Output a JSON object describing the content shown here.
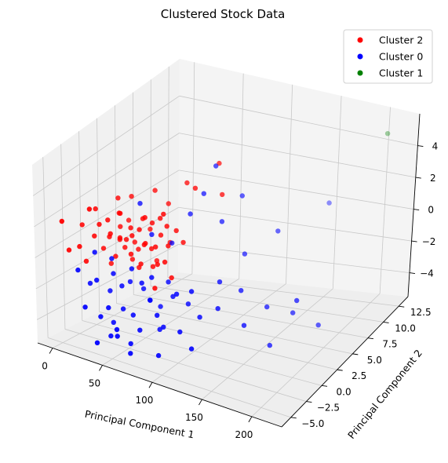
{
  "chart_data": {
    "type": "scatter",
    "title": "Clustered Stock Data",
    "xlabel": "Principal Component 1",
    "ylabel": "Principal Component 2",
    "zlabel": "",
    "xlim": [
      -15,
      230
    ],
    "ylim": [
      -6.5,
      14
    ],
    "zlim": [
      -5.5,
      6
    ],
    "xticks": [
      0,
      50,
      100,
      150,
      200
    ],
    "xtick_labels": [
      "0",
      "50",
      "100",
      "150",
      "200"
    ],
    "yticks": [
      -5.0,
      -2.5,
      0.0,
      2.5,
      5.0,
      7.5,
      10.0,
      12.5
    ],
    "ytick_labels": [
      "−5.0",
      "−2.5",
      "0.0",
      "2.5",
      "5.0",
      "7.5",
      "10.0",
      "12.5"
    ],
    "zticks": [
      -4,
      -2,
      0,
      2,
      4
    ],
    "ztick_labels": [
      "−4",
      "−2",
      "0",
      "2",
      "4"
    ],
    "grid": true,
    "legend_position": "top-right",
    "series": [
      {
        "name": "Cluster 2",
        "color": "#ff0000",
        "points": [
          [
            2,
            -5,
            2.2
          ],
          [
            5,
            -4.5,
            0.3
          ],
          [
            8,
            -3,
            1.5
          ],
          [
            12,
            -4,
            0.5
          ],
          [
            15,
            -3.5,
            -0.5
          ],
          [
            18,
            -2.5,
            2.5
          ],
          [
            20,
            -3,
            1
          ],
          [
            22,
            -2,
            0
          ],
          [
            25,
            -3,
            1.8
          ],
          [
            26,
            -1.5,
            -1
          ],
          [
            28,
            -2,
            0.8
          ],
          [
            30,
            -2.5,
            2
          ],
          [
            32,
            -1,
            1.2
          ],
          [
            34,
            -2,
            -0.3
          ],
          [
            35,
            -1.5,
            0.6
          ],
          [
            36,
            -3,
            1.4
          ],
          [
            38,
            -2,
            2.4
          ],
          [
            40,
            -1.5,
            0.2
          ],
          [
            42,
            -2.5,
            1.1
          ],
          [
            44,
            -1,
            -0.6
          ],
          [
            45,
            -2,
            0.9
          ],
          [
            46,
            -3,
            2.8
          ],
          [
            48,
            -1.8,
            1.6
          ],
          [
            50,
            -1,
            0.1
          ],
          [
            52,
            -2.2,
            1.3
          ],
          [
            54,
            -1.5,
            -0.8
          ],
          [
            55,
            -2.8,
            0.4
          ],
          [
            56,
            -1.2,
            2.1
          ],
          [
            58,
            -2,
            1.7
          ],
          [
            60,
            -1.6,
            0.7
          ],
          [
            62,
            -2.4,
            -0.2
          ],
          [
            64,
            -1,
            1.9
          ],
          [
            65,
            -2.2,
            2.6
          ],
          [
            66,
            -1.4,
            0.5
          ],
          [
            68,
            -2.6,
            1.2
          ],
          [
            70,
            -1.8,
            -0.4
          ],
          [
            72,
            -1,
            2.3
          ],
          [
            74,
            -2,
            0.9
          ],
          [
            76,
            -1.5,
            1.5
          ],
          [
            78,
            -2.3,
            0
          ],
          [
            80,
            -1.2,
            2
          ],
          [
            82,
            -2,
            3
          ],
          [
            84,
            -1.6,
            1
          ],
          [
            86,
            -2.4,
            0.3
          ],
          [
            88,
            -1,
            1.8
          ],
          [
            90,
            -2,
            -0.7
          ],
          [
            60,
            0,
            3.5
          ],
          [
            85,
            1,
            4
          ],
          [
            40,
            -0.5,
            3
          ],
          [
            30,
            -1,
            2.9
          ],
          [
            70,
            0.5,
            2.7
          ],
          [
            55,
            0,
            1.1
          ],
          [
            45,
            -0.8,
            0.4
          ],
          [
            65,
            -0.5,
            -0.5
          ],
          [
            75,
            0,
            0.6
          ],
          [
            35,
            -0.2,
            1.4
          ],
          [
            95,
            -1,
            1.2
          ],
          [
            100,
            0,
            4.2
          ],
          [
            110,
            2,
            5.2
          ],
          [
            120,
            1,
            3.8
          ],
          [
            26,
            -4.5,
            3.2
          ],
          [
            80,
            -3,
            -1.2
          ]
        ]
      },
      {
        "name": "Cluster 0",
        "color": "#0000ff",
        "points": [
          [
            10,
            -4,
            -1
          ],
          [
            15,
            -3,
            -2
          ],
          [
            20,
            -4.5,
            -3
          ],
          [
            25,
            -3.5,
            -1.5
          ],
          [
            28,
            -2,
            -2.5
          ],
          [
            32,
            -4,
            -3.5
          ],
          [
            35,
            -2.5,
            -1.2
          ],
          [
            38,
            -3,
            -4
          ],
          [
            40,
            -2,
            -2
          ],
          [
            42,
            -4,
            -4.5
          ],
          [
            45,
            -1.5,
            -1.8
          ],
          [
            48,
            -3,
            -3
          ],
          [
            50,
            -2,
            -0.8
          ],
          [
            52,
            -4.5,
            -4.2
          ],
          [
            55,
            -1,
            -2.2
          ],
          [
            58,
            -3,
            -3.2
          ],
          [
            60,
            -2,
            -1.5
          ],
          [
            62,
            -4,
            -4.6
          ],
          [
            65,
            -1.5,
            -2.6
          ],
          [
            68,
            -3.5,
            -3.8
          ],
          [
            70,
            -2,
            -1
          ],
          [
            72,
            -1,
            -3
          ],
          [
            75,
            -3,
            -2
          ],
          [
            78,
            -2,
            -4
          ],
          [
            80,
            -1,
            -1.4
          ],
          [
            82,
            -3,
            -2.8
          ],
          [
            85,
            -2.5,
            -3.6
          ],
          [
            88,
            -1.5,
            -2
          ],
          [
            90,
            -4,
            -4.8
          ],
          [
            95,
            -2,
            -1.6
          ],
          [
            100,
            -1,
            -2.4
          ],
          [
            105,
            -3,
            -3.4
          ],
          [
            110,
            -2,
            -1.2
          ],
          [
            115,
            -1.5,
            -2.8
          ],
          [
            120,
            -3.5,
            -4
          ],
          [
            125,
            0,
            -1
          ],
          [
            130,
            -1,
            -2.2
          ],
          [
            140,
            1,
            -1.6
          ],
          [
            150,
            0,
            -3.2
          ],
          [
            160,
            2,
            -2.6
          ],
          [
            170,
            1,
            -4.4
          ],
          [
            180,
            3,
            -3
          ],
          [
            190,
            2,
            -1.8
          ],
          [
            200,
            4,
            -3.8
          ],
          [
            45,
            0,
            2.5
          ],
          [
            60,
            -0.5,
            1
          ],
          [
            70,
            1,
            0.2
          ],
          [
            85,
            1.5,
            2
          ],
          [
            95,
            2,
            3.2
          ],
          [
            100,
            3,
            4.6
          ],
          [
            110,
            2.5,
            1.6
          ],
          [
            120,
            4,
            2.8
          ],
          [
            130,
            3,
            -0.2
          ],
          [
            150,
            5,
            0.8
          ],
          [
            30,
            -2,
            -0.5
          ],
          [
            20,
            -3,
            0
          ],
          [
            40,
            -4,
            -2.8
          ],
          [
            55,
            -5,
            -3.6
          ],
          [
            35,
            -5,
            -4.8
          ],
          [
            65,
            -4.5,
            -5
          ],
          [
            175,
            9,
            1.5
          ]
        ]
      },
      {
        "name": "Cluster 1",
        "color": "#008000",
        "points": [
          [
            218,
            11,
            5.6
          ]
        ]
      }
    ]
  }
}
